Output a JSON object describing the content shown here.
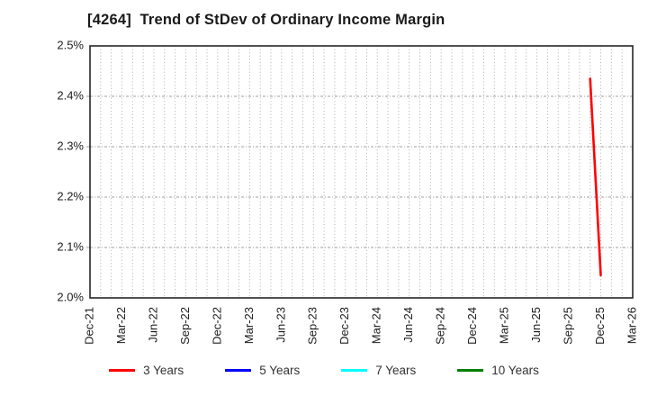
{
  "chart_data": {
    "type": "line",
    "title": "[4264]  Trend of StDev of Ordinary Income Margin",
    "xlabel": "",
    "ylabel": "",
    "ylim": [
      2.0,
      2.5
    ],
    "y_tick_labels": [
      "2.0%",
      "2.1%",
      "2.2%",
      "2.3%",
      "2.4%",
      "2.5%"
    ],
    "y_tick_values": [
      2.0,
      2.1,
      2.2,
      2.3,
      2.4,
      2.5
    ],
    "x_range_months": [
      "Dec-21",
      "Mar-26"
    ],
    "x_tick_labels": [
      "Dec-21",
      "Mar-22",
      "Jun-22",
      "Sep-22",
      "Dec-22",
      "Mar-23",
      "Jun-23",
      "Sep-23",
      "Dec-23",
      "Mar-24",
      "Jun-24",
      "Sep-24",
      "Dec-24",
      "Mar-25",
      "Jun-25",
      "Sep-25",
      "Dec-25",
      "Mar-26"
    ],
    "grid": "on",
    "legend_position": "bottom-center",
    "series": [
      {
        "name": "3 Years",
        "color": "#ff0000",
        "points": [
          {
            "month": "Nov-25",
            "value": 2.435
          },
          {
            "month": "Dec-25",
            "value": 2.045
          }
        ]
      },
      {
        "name": "5 Years",
        "color": "#0000ff",
        "points": []
      },
      {
        "name": "7 Years",
        "color": "#00ffff",
        "points": []
      },
      {
        "name": "10 Years",
        "color": "#008000",
        "points": []
      }
    ],
    "colors": {
      "grid_vertical": "#ababab",
      "grid_horizontal": "#9c9c9c",
      "plot_border": "#262626",
      "tick_text": "#1c1c1c",
      "legend_text": "#333333",
      "background": "#ffffff"
    }
  }
}
